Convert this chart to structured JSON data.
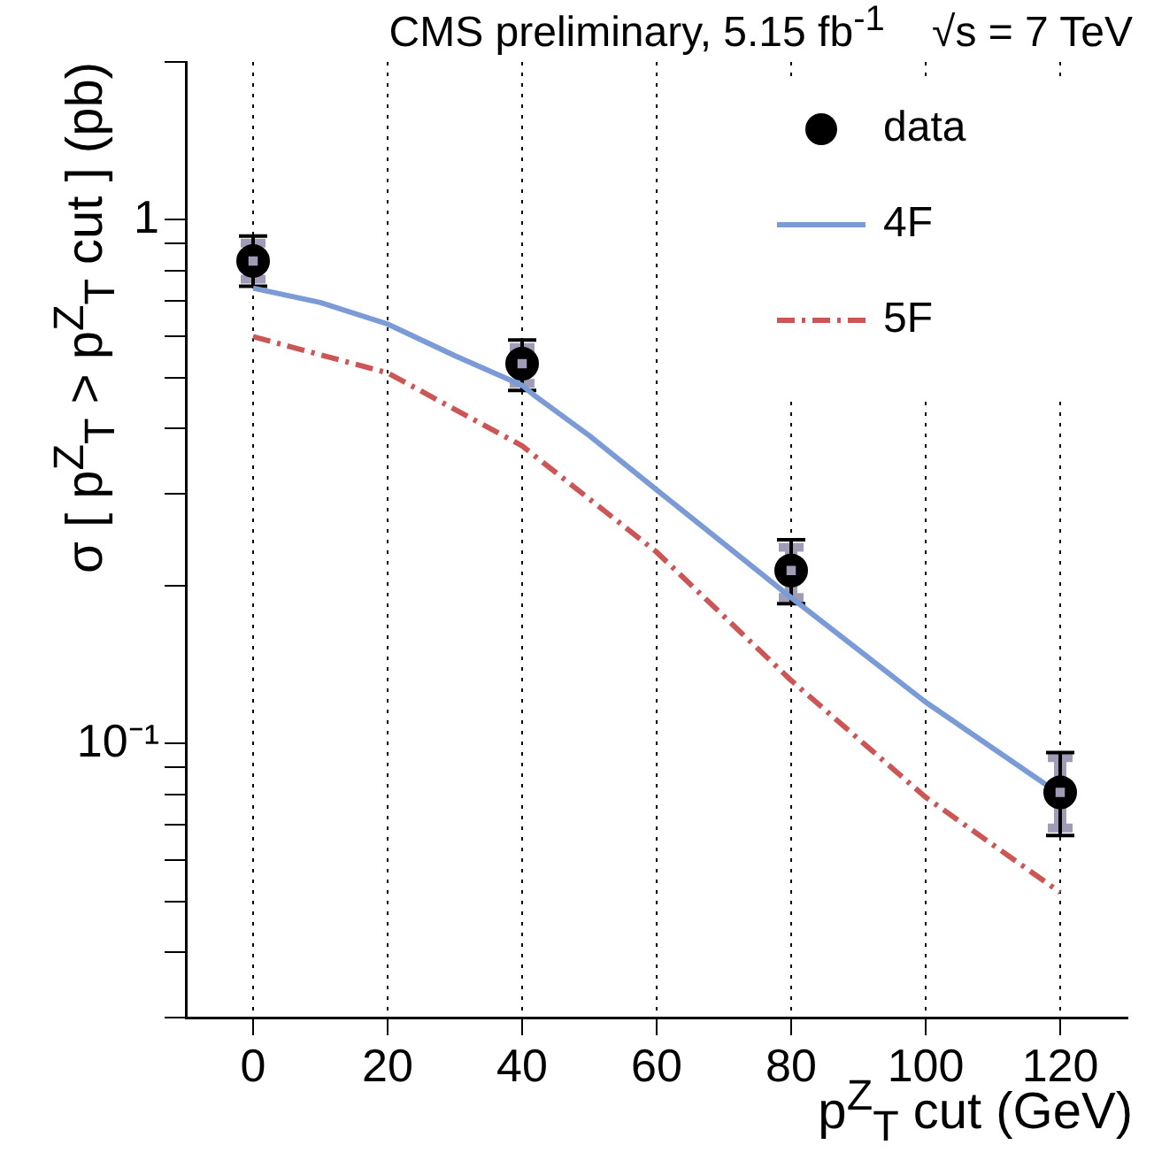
{
  "chart_data": {
    "type": "scatter",
    "title": "CMS preliminary, 5.15 fb$^{-1}$    √s = 7 TeV",
    "xlabel": "p$^{Z}$$_{T}$ cut (GeV)",
    "ylabel": "σ [ p$^{Z}$$_{T}$ > p$^{Z}$$_{T}$ cut ] (pb)",
    "x": [
      0,
      40,
      80,
      120
    ],
    "series": [
      {
        "name": "data",
        "type": "scatter",
        "color": "#000000",
        "marker": "circle",
        "values": [
          0.834,
          0.531,
          0.214,
          0.0807
        ],
        "errors": [
          [
            0.746,
            0.931
          ],
          [
            0.472,
            0.589
          ],
          [
            0.185,
            0.245
          ],
          [
            0.0668,
            0.0961
          ]
        ]
      },
      {
        "type": "scatter",
        "color": "#a09cb8",
        "marker": "square",
        "values": [
          0.834,
          0.531,
          0.214,
          0.0807
        ],
        "errors": [
          [
            0.77,
            0.902
          ],
          [
            0.487,
            0.57
          ],
          [
            0.19,
            0.237
          ],
          [
            0.069,
            0.094
          ]
        ]
      },
      {
        "name": "4F",
        "type": "line",
        "color": "#7b9bd6",
        "marker": "none",
        "line_style": "solid",
        "x": [
          0,
          10,
          20,
          30,
          40,
          42,
          50,
          60,
          80,
          100,
          120
        ],
        "values": [
          0.74,
          0.695,
          0.632,
          0.55,
          0.483,
          0.46,
          0.387,
          0.305,
          0.19,
          0.12,
          0.08
        ]
      },
      {
        "name": "5F",
        "type": "line",
        "color": "#cc5555",
        "marker": "none",
        "line_style": "dashed",
        "x": [
          0,
          20,
          40,
          60,
          80,
          100,
          120
        ],
        "values": [
          0.598,
          0.51,
          0.37,
          0.232,
          0.132,
          0.079,
          0.052
        ]
      }
    ],
    "xlim": [
      -10,
      130
    ],
    "xticks": [
      0,
      20,
      40,
      60,
      80,
      100,
      120
    ],
    "ylim": [
      0.03,
      2
    ],
    "yticks": [
      {
        "value": 0.03,
        "label": null
      },
      {
        "value": 0.04,
        "label": null
      },
      {
        "value": 0.05,
        "label": null
      },
      {
        "value": 0.06,
        "label": null
      },
      {
        "value": 0.07,
        "label": null
      },
      {
        "value": 0.08,
        "label": null
      },
      {
        "value": 0.09,
        "label": null
      },
      {
        "value": 0.1,
        "label": "10⁻¹"
      },
      {
        "value": 0.2,
        "label": null
      },
      {
        "value": 0.3,
        "label": null
      },
      {
        "value": 0.4,
        "label": null
      },
      {
        "value": 0.5,
        "label": null
      },
      {
        "value": 0.6,
        "label": null
      },
      {
        "value": 0.7,
        "label": null
      },
      {
        "value": 0.8,
        "label": null
      },
      {
        "value": 0.9,
        "label": null
      },
      {
        "value": 1,
        "label": "1"
      },
      {
        "value": 2,
        "label": null
      }
    ],
    "log": "y",
    "grid": "x",
    "legend": "top right"
  }
}
